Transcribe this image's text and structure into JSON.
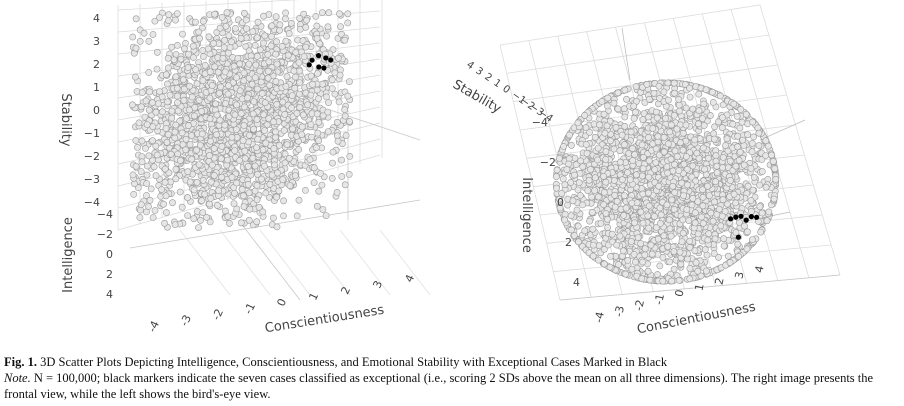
{
  "chart_data": [
    {
      "type": "scatter3d",
      "view": "frontal",
      "n_points": 100000,
      "x_axis": {
        "title": "Conscientiousness",
        "ticks": [
          "-4",
          "-3",
          "-2",
          "-1",
          "0",
          "1",
          "2",
          "3",
          "4"
        ]
      },
      "y_axis": {
        "title": "Stability",
        "ticks": [
          "4",
          "3",
          "2",
          "1",
          "0",
          "−1",
          "−2",
          "−3",
          "−4"
        ]
      },
      "z_axis": {
        "title": "Intelligence",
        "ticks": [
          "−4",
          "−2",
          "0",
          "2",
          "4"
        ]
      },
      "series": [
        {
          "name": "all cases",
          "color": "#e6e6e6",
          "edge": "#9a9a9a"
        },
        {
          "name": "exceptional cases",
          "count": 7,
          "color": "#000000",
          "x": [
            2.3,
            2.5,
            2.9,
            3.1,
            2.7,
            2.6,
            3.3
          ],
          "y": [
            2.2,
            2.4,
            2.1,
            2.6,
            2.9,
            2.3,
            2.5
          ],
          "z": [
            2.4,
            2.1,
            2.7,
            2.2,
            2.5,
            3.0,
            2.3
          ]
        }
      ]
    },
    {
      "type": "scatter3d",
      "view": "birds-eye",
      "n_points": 100000,
      "x_axis": {
        "title": "Conscientiousness",
        "ticks": [
          "-4",
          "-3",
          "-2",
          "-1",
          "0",
          "1",
          "2",
          "3",
          "4"
        ]
      },
      "y_axis": {
        "title": "Stability",
        "ticks": [
          "4",
          "3",
          "2",
          "1",
          "0",
          "−1",
          "−2",
          "−3",
          "−4"
        ]
      },
      "z_axis": {
        "title": "Intelligence",
        "ticks": [
          "−4",
          "−2",
          "0",
          "2",
          "4"
        ]
      },
      "series": [
        {
          "name": "all cases",
          "color": "#e6e6e6",
          "edge": "#9a9a9a"
        },
        {
          "name": "exceptional cases",
          "count": 7,
          "color": "#000000",
          "x": [
            2.3,
            2.5,
            2.9,
            3.1,
            2.7,
            2.6,
            3.3
          ],
          "y": [
            2.2,
            2.4,
            2.1,
            2.6,
            2.9,
            2.3,
            2.5
          ],
          "z": [
            2.4,
            2.1,
            2.7,
            2.2,
            2.5,
            3.0,
            2.3
          ]
        }
      ]
    }
  ],
  "caption": {
    "label": "Fig. 1.",
    "title": "3D Scatter Plots Depicting Intelligence, Conscientiousness, and Emotional Stability with Exceptional Cases Marked in Black",
    "note_label": "Note.",
    "note_text": "N = 100,000; black markers indicate the seven cases classified as exceptional (i.e., scoring 2 SDs above the mean on all three dimensions). The right image presents the frontal view, while the left shows the bird's-eye view."
  }
}
